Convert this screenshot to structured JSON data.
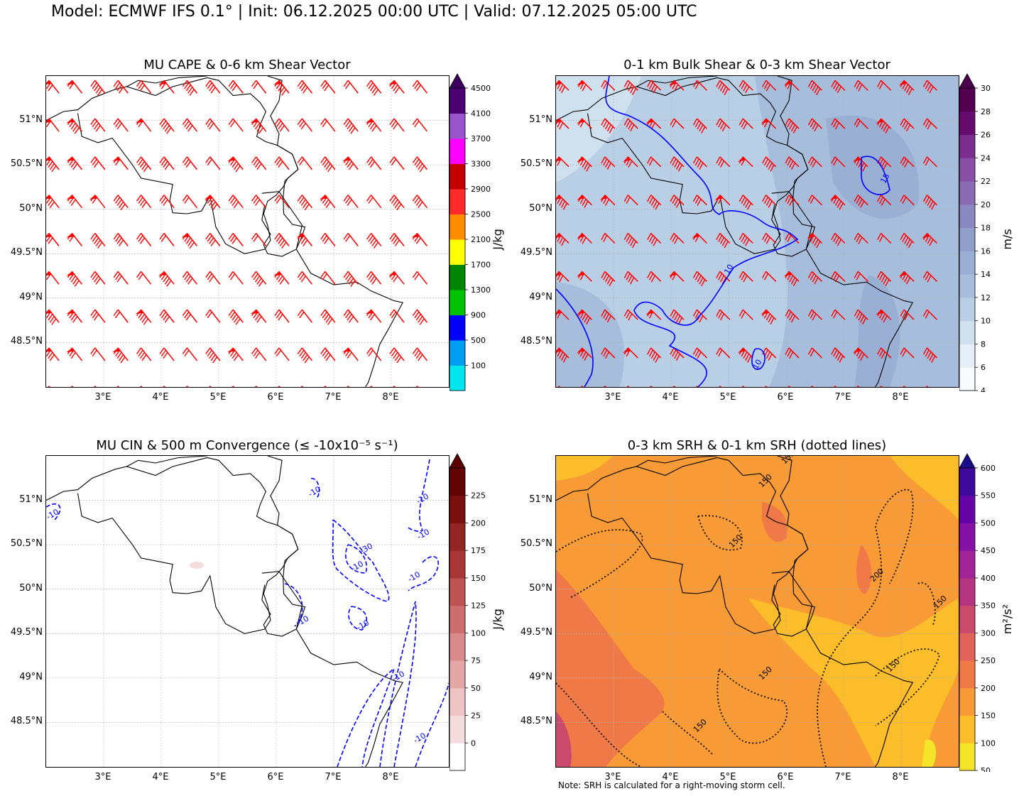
{
  "suptitle": "Model: ECMWF IFS 0.1° | Init: 06.12.2025 00:00 UTC | Valid: 07.12.2025 05:00 UTC",
  "note": "Note: SRH is calculated for a right-moving storm cell.",
  "lat_labels": [
    "51°N",
    "50.5°N",
    "50°N",
    "49.5°N",
    "49°N",
    "48.5°N"
  ],
  "lon_labels": [
    "3°E",
    "4°E",
    "5°E",
    "6°E",
    "7°E",
    "8°E"
  ],
  "extent": {
    "lon_min": 2.0,
    "lon_max": 9.0,
    "lat_min": 48.0,
    "lat_max": 51.5
  },
  "colors": {
    "barb": "#ff0000",
    "contour": "#0000ff",
    "border": "#000000",
    "grid": "#b0b0b0"
  },
  "panels": [
    {
      "title": "MU CAPE & 0-6 km Shear Vector",
      "cbar_label": "J/kg",
      "cbar_ticks": [
        "100",
        "500",
        "900",
        "1300",
        "1700",
        "2100",
        "2500",
        "2900",
        "3300",
        "3700",
        "4100",
        "4500"
      ],
      "cbar_colors": [
        "#00e5ee",
        "#009ef2",
        "#0000ff",
        "#00c200",
        "#008600",
        "#ffff00",
        "#ff8c00",
        "#ff2a2a",
        "#c40000",
        "#ff00ff",
        "#9955cc",
        "#4a0070"
      ],
      "cbar_extend_color": "#3c0060"
    },
    {
      "title": "0-1 km Bulk Shear & 0-3 km Shear Vector",
      "cbar_label": "m/s",
      "cbar_ticks": [
        "4",
        "6",
        "8",
        "10",
        "12",
        "14",
        "16",
        "18",
        "20",
        "22",
        "24",
        "26",
        "28",
        "30"
      ],
      "cbar_colors": [
        "#f7fbff",
        "#e6eff7",
        "#cfe0ee",
        "#b9cfe6",
        "#a6bedc",
        "#9aafd4",
        "#8f9fca",
        "#8a88c0",
        "#8a6cb4",
        "#8750a6",
        "#7c2e8e",
        "#660c6e",
        "#52004f"
      ],
      "cbar_extend_color": "#4d004b",
      "contour_labels": [
        "15",
        "10",
        "10"
      ]
    },
    {
      "title": "MU CIN & 500 m Convergence (≤ -10x10⁻⁵ s⁻¹)",
      "cbar_label": "J/kg",
      "cbar_ticks": [
        "0",
        "25",
        "50",
        "75",
        "100",
        "125",
        "150",
        "175",
        "200",
        "225"
      ],
      "cbar_colors": [
        "#ffffff",
        "#f6dddd",
        "#efc4c4",
        "#e5a6a6",
        "#d98a8a",
        "#cc6e6e",
        "#bf5353",
        "#a83636",
        "#932424",
        "#7a1010",
        "#630404"
      ],
      "cbar_extend_color": "#5c0000",
      "contour_labels": [
        "-10",
        "-10",
        "-10",
        "-10",
        "-30",
        "-10",
        "-10",
        "-10",
        "-10",
        "-10",
        "-10"
      ]
    },
    {
      "title": "0-3 km SRH & 0-1 km SRH (dotted lines)",
      "cbar_label": "m²/s²",
      "cbar_ticks": [
        "50",
        "100",
        "150",
        "200",
        "250",
        "300",
        "350",
        "400",
        "450",
        "500",
        "550",
        "600"
      ],
      "cbar_colors": [
        "#f5e52a",
        "#fbbd2a",
        "#f89a36",
        "#ef7a47",
        "#e06359",
        "#c94a6a",
        "#b53480",
        "#a02496",
        "#8410a6",
        "#6505a8",
        "#3e0a9c"
      ],
      "cbar_extend_color": "#1a0c8a",
      "contour_labels": [
        "150",
        "150",
        "150",
        "200",
        "150",
        "150",
        "150",
        "150"
      ]
    }
  ]
}
